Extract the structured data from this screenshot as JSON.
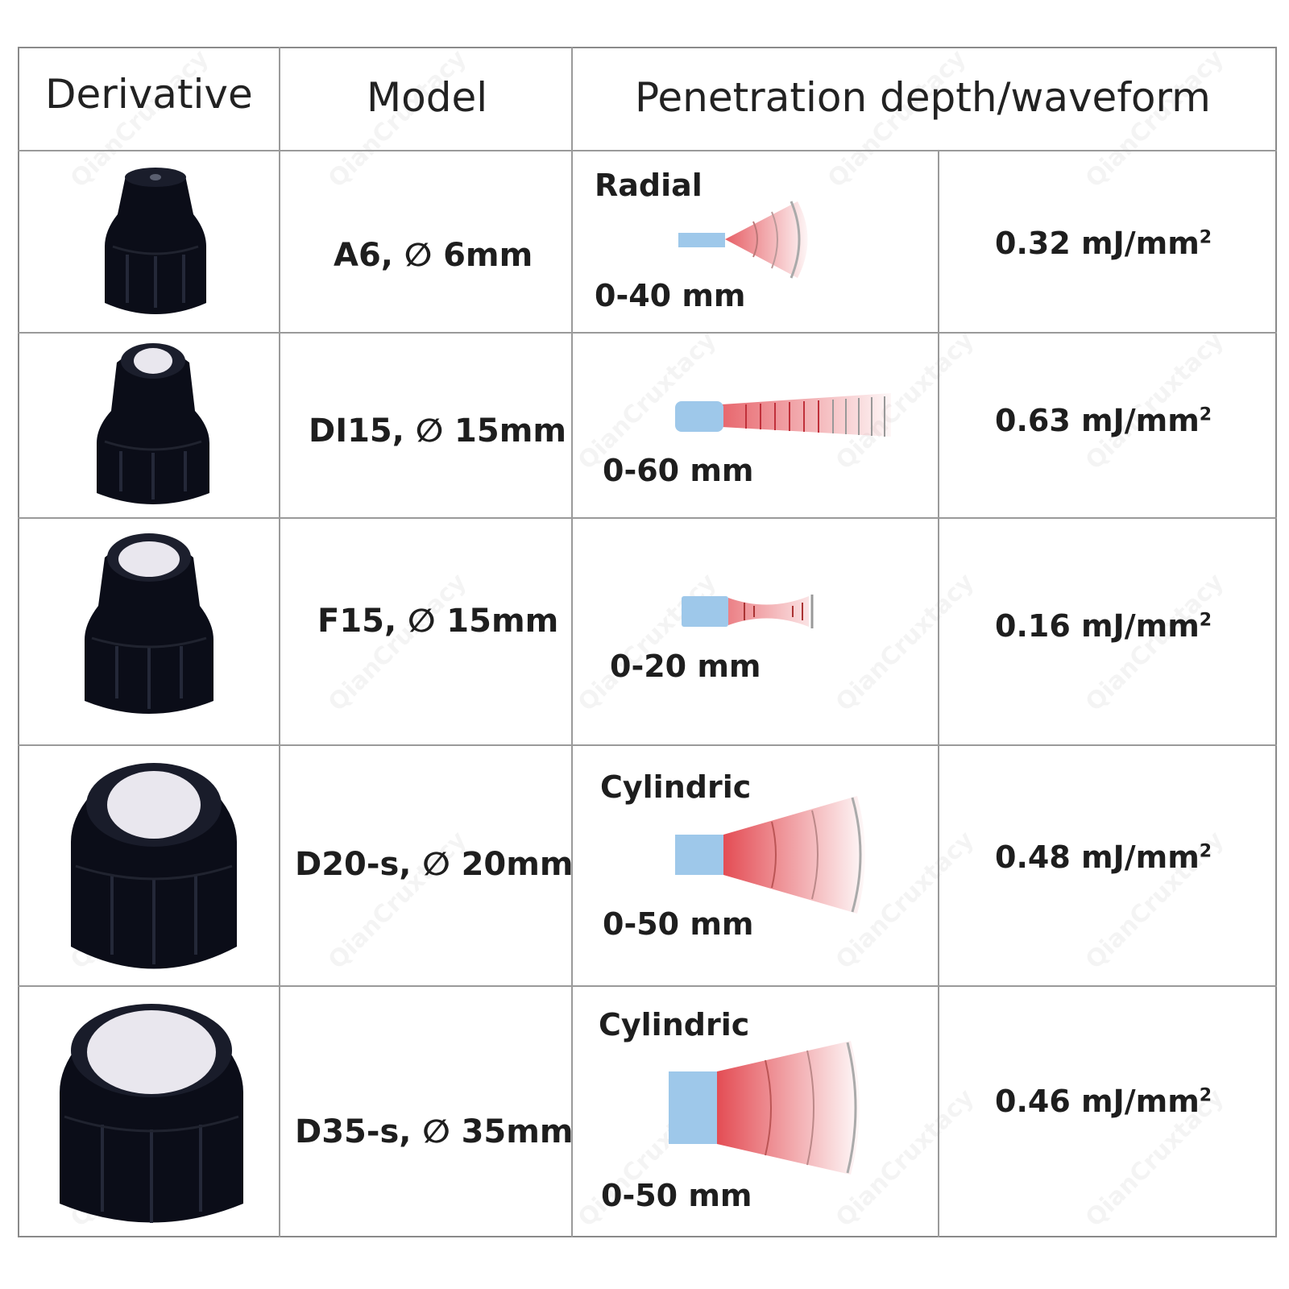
{
  "header": {
    "derivative": "Derivative",
    "model": "Model",
    "penetration": "Penetration depth/waveform"
  },
  "rows": [
    {
      "model": "A6, ∅ 6mm",
      "wave_type": "Radial",
      "depth": "0-40 mm",
      "energy": "0.32 mJ/mm",
      "energy_unit_sup": "2"
    },
    {
      "model": "DI15, ∅ 15mm",
      "wave_type": "",
      "depth": "0-60 mm",
      "energy": "0.63 mJ/mm",
      "energy_unit_sup": "2"
    },
    {
      "model": "F15, ∅ 15mm",
      "wave_type": "",
      "depth": "0-20 mm",
      "energy": "0.16 mJ/mm",
      "energy_unit_sup": "2"
    },
    {
      "model": "D20-s, ∅ 20mm",
      "wave_type": "Cylindric",
      "depth": "0-50 mm",
      "energy": "0.48 mJ/mm",
      "energy_unit_sup": "2"
    },
    {
      "model": "D35-s, ∅ 35mm",
      "wave_type": "Cylindric",
      "depth": "0-50 mm",
      "energy": "0.46 mJ/mm",
      "energy_unit_sup": "2"
    }
  ],
  "colors": {
    "applicator": "#9ec8ea",
    "wave": "#e2434b",
    "cap": "#0b0d18",
    "lens": "#e9e7ee"
  },
  "icons": [
    "cap-a6-image",
    "cap-di15-image",
    "cap-f15-image",
    "cap-d20s-image",
    "cap-d35s-image"
  ],
  "watermark": "QianCruxtacy"
}
